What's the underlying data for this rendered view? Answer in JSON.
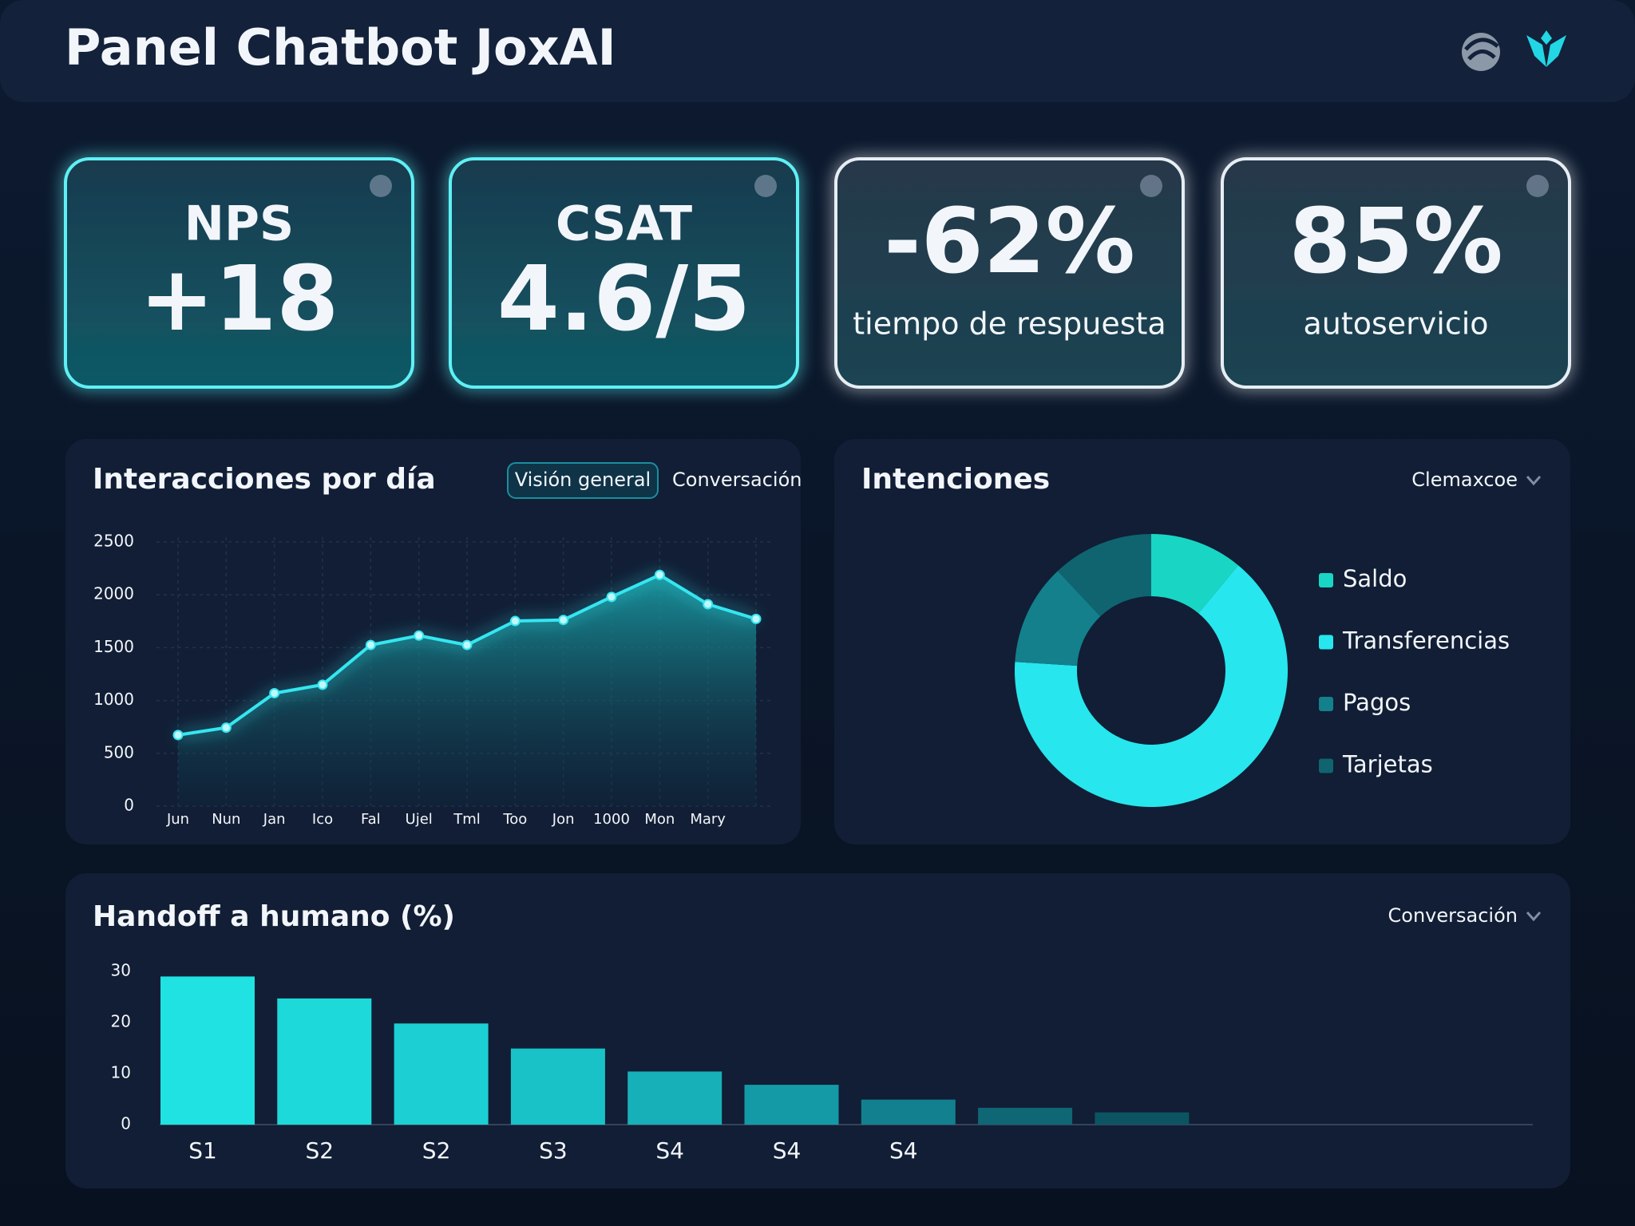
{
  "header": {
    "title": "Panel Chatbot JoxAI"
  },
  "kpis": [
    {
      "label": "NPS",
      "value": "+18"
    },
    {
      "label": "CSAT",
      "value": "4.6/5"
    },
    {
      "value": "-62%",
      "label": "tiempo de respuesta"
    },
    {
      "value": "85%",
      "label": "autoservicio"
    }
  ],
  "chart_data": [
    {
      "type": "line",
      "title": "Interacciones por día",
      "tabs": [
        "Visión general",
        "Conversación"
      ],
      "categories": [
        "Jun",
        "Nun",
        "Jan",
        "Ico",
        "Fal",
        "Ujel",
        "Tml",
        "Too",
        "Jon",
        "1000",
        "Mon",
        "Mary",
        null
      ],
      "values": [
        673,
        743,
        1069,
        1149,
        1525,
        1614,
        1525,
        1752,
        1762,
        1980,
        2188,
        1911,
        1772
      ],
      "color": "#35e6f0",
      "ylim": [
        0,
        2500
      ],
      "yticks": [
        0,
        500,
        1000,
        1500,
        2000,
        2500
      ],
      "grid": true
    },
    {
      "type": "pie",
      "title": "Intenciones",
      "dropdown": "Clemaxcoe",
      "categories": [
        "Saldo",
        "Transferencias",
        "Pagos",
        "Tarjetas"
      ],
      "values": [
        11,
        65,
        12,
        12
      ],
      "colors": [
        "#19d6c4",
        "#27e6ee",
        "#13808c",
        "#0f6470"
      ]
    },
    {
      "type": "bar",
      "title": "Handoff a humano (%)",
      "dropdown": "Conversación",
      "categories": [
        "S1",
        "S2",
        "S2",
        "S3",
        "S4",
        "S4",
        "S4",
        null,
        null
      ],
      "values": [
        29.0,
        24.7,
        19.8,
        14.9,
        10.4,
        7.8,
        4.9,
        3.3,
        2.4
      ],
      "colors": [
        "#20e2e2",
        "#1ed9da",
        "#1ccfd2",
        "#19c2c7",
        "#17b0b8",
        "#149aa6",
        "#12808e",
        "#0f6674",
        "#0d5462"
      ],
      "ylim": [
        0,
        30
      ],
      "yticks": [
        0,
        10,
        20,
        30
      ]
    }
  ]
}
